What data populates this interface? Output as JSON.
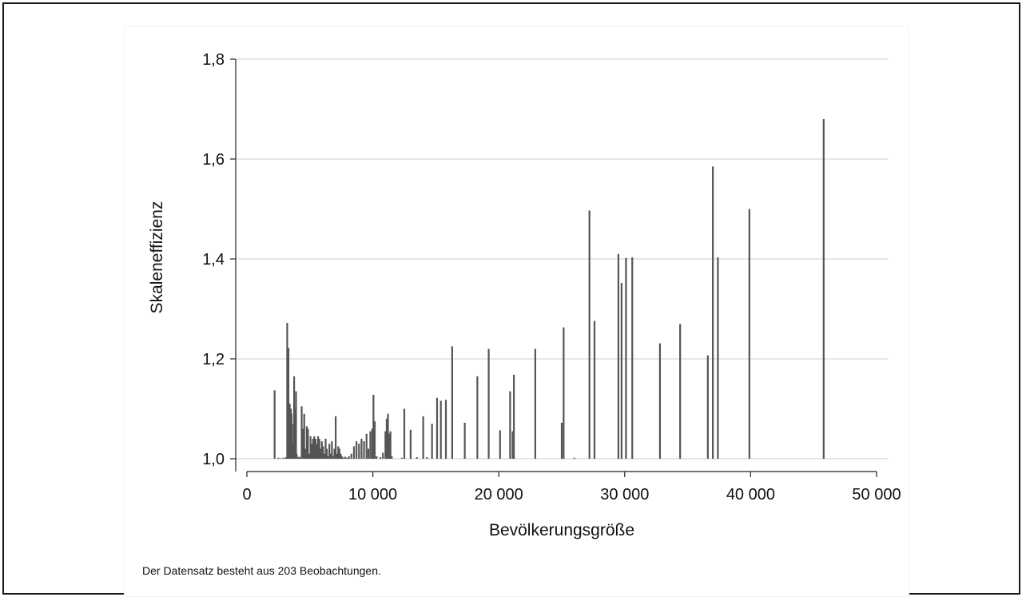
{
  "chart_data": {
    "type": "bar",
    "xlabel": "Bevölkerungsgröße",
    "ylabel": "Skaleneffizienz",
    "xlim": [
      0,
      50000
    ],
    "ylim": [
      1.0,
      1.8
    ],
    "x_ticks": [
      0,
      10000,
      20000,
      30000,
      40000,
      50000
    ],
    "x_tick_labels": [
      "0",
      "10 000",
      "20 000",
      "30 000",
      "40 000",
      "50 000"
    ],
    "y_ticks": [
      1.0,
      1.2,
      1.4,
      1.6,
      1.8
    ],
    "y_tick_labels": [
      "1,0",
      "1,2",
      "1,4",
      "1,6",
      "1,8"
    ],
    "grid": "horizontal",
    "bar_color": "#555555",
    "points": [
      {
        "x": 2200,
        "y": 1.137
      },
      {
        "x": 2500,
        "y": 1.002
      },
      {
        "x": 2700,
        "y": 1.001
      },
      {
        "x": 2900,
        "y": 1.002
      },
      {
        "x": 3100,
        "y": 1.003
      },
      {
        "x": 3200,
        "y": 1.272
      },
      {
        "x": 3300,
        "y": 1.222
      },
      {
        "x": 3350,
        "y": 1.1
      },
      {
        "x": 3400,
        "y": 1.11
      },
      {
        "x": 3450,
        "y": 1.05
      },
      {
        "x": 3500,
        "y": 1.1
      },
      {
        "x": 3550,
        "y": 1.09
      },
      {
        "x": 3600,
        "y": 1.03
      },
      {
        "x": 3650,
        "y": 1.002
      },
      {
        "x": 3700,
        "y": 1.07
      },
      {
        "x": 3750,
        "y": 1.165
      },
      {
        "x": 3800,
        "y": 1.01
      },
      {
        "x": 3850,
        "y": 1.1
      },
      {
        "x": 3900,
        "y": 1.135
      },
      {
        "x": 3950,
        "y": 1.01
      },
      {
        "x": 4050,
        "y": 1.003
      },
      {
        "x": 4150,
        "y": 1.004
      },
      {
        "x": 4250,
        "y": 1.002
      },
      {
        "x": 4350,
        "y": 1.105
      },
      {
        "x": 4450,
        "y": 1.06
      },
      {
        "x": 4550,
        "y": 1.09
      },
      {
        "x": 4650,
        "y": 1.02
      },
      {
        "x": 4750,
        "y": 1.065
      },
      {
        "x": 4850,
        "y": 1.06
      },
      {
        "x": 4950,
        "y": 1.01
      },
      {
        "x": 5050,
        "y": 1.045
      },
      {
        "x": 5150,
        "y": 1.03
      },
      {
        "x": 5250,
        "y": 1.04
      },
      {
        "x": 5350,
        "y": 1.045
      },
      {
        "x": 5450,
        "y": 1.04
      },
      {
        "x": 5550,
        "y": 1.03
      },
      {
        "x": 5650,
        "y": 1.045
      },
      {
        "x": 5750,
        "y": 1.04
      },
      {
        "x": 5850,
        "y": 1.02
      },
      {
        "x": 5950,
        "y": 1.035
      },
      {
        "x": 6050,
        "y": 1.025
      },
      {
        "x": 6150,
        "y": 1.01
      },
      {
        "x": 6250,
        "y": 1.04
      },
      {
        "x": 6350,
        "y": 1.02
      },
      {
        "x": 6450,
        "y": 1.005
      },
      {
        "x": 6550,
        "y": 1.03
      },
      {
        "x": 6650,
        "y": 1.01
      },
      {
        "x": 6750,
        "y": 1.035
      },
      {
        "x": 6850,
        "y": 1.005
      },
      {
        "x": 6950,
        "y": 1.02
      },
      {
        "x": 7050,
        "y": 1.085
      },
      {
        "x": 7150,
        "y": 1.01
      },
      {
        "x": 7250,
        "y": 1.025
      },
      {
        "x": 7350,
        "y": 1.02
      },
      {
        "x": 7450,
        "y": 1.01
      },
      {
        "x": 7550,
        "y": 1.005
      },
      {
        "x": 7650,
        "y": 1.002
      },
      {
        "x": 7800,
        "y": 1.004
      },
      {
        "x": 7950,
        "y": 1.002
      },
      {
        "x": 8100,
        "y": 1.005
      },
      {
        "x": 8300,
        "y": 1.01
      },
      {
        "x": 8500,
        "y": 1.025
      },
      {
        "x": 8700,
        "y": 1.035
      },
      {
        "x": 8900,
        "y": 1.03
      },
      {
        "x": 9100,
        "y": 1.04
      },
      {
        "x": 9300,
        "y": 1.035
      },
      {
        "x": 9500,
        "y": 1.05
      },
      {
        "x": 9650,
        "y": 1.02
      },
      {
        "x": 9800,
        "y": 1.055
      },
      {
        "x": 9950,
        "y": 1.06
      },
      {
        "x": 10050,
        "y": 1.128
      },
      {
        "x": 10150,
        "y": 1.075
      },
      {
        "x": 10300,
        "y": 1.005
      },
      {
        "x": 10600,
        "y": 1.003
      },
      {
        "x": 10800,
        "y": 1.012
      },
      {
        "x": 11000,
        "y": 1.055
      },
      {
        "x": 11100,
        "y": 1.08
      },
      {
        "x": 11200,
        "y": 1.09
      },
      {
        "x": 11300,
        "y": 1.05
      },
      {
        "x": 11400,
        "y": 1.055
      },
      {
        "x": 11500,
        "y": 1.005
      },
      {
        "x": 12500,
        "y": 1.1
      },
      {
        "x": 12300,
        "y": 1.002
      },
      {
        "x": 13000,
        "y": 1.058
      },
      {
        "x": 13500,
        "y": 1.003
      },
      {
        "x": 14000,
        "y": 1.085
      },
      {
        "x": 14300,
        "y": 1.003
      },
      {
        "x": 14700,
        "y": 1.07
      },
      {
        "x": 15100,
        "y": 1.122
      },
      {
        "x": 15400,
        "y": 1.116
      },
      {
        "x": 15800,
        "y": 1.118
      },
      {
        "x": 16300,
        "y": 1.225
      },
      {
        "x": 17300,
        "y": 1.072
      },
      {
        "x": 18300,
        "y": 1.165
      },
      {
        "x": 19200,
        "y": 1.22
      },
      {
        "x": 20100,
        "y": 1.057
      },
      {
        "x": 20900,
        "y": 1.135
      },
      {
        "x": 21100,
        "y": 1.055
      },
      {
        "x": 21200,
        "y": 1.168
      },
      {
        "x": 22900,
        "y": 1.22
      },
      {
        "x": 25000,
        "y": 1.072
      },
      {
        "x": 25150,
        "y": 1.263
      },
      {
        "x": 26000,
        "y": 1.002
      },
      {
        "x": 27200,
        "y": 1.497
      },
      {
        "x": 27600,
        "y": 1.276
      },
      {
        "x": 29500,
        "y": 1.41
      },
      {
        "x": 29750,
        "y": 1.352
      },
      {
        "x": 30100,
        "y": 1.402
      },
      {
        "x": 30600,
        "y": 1.403
      },
      {
        "x": 32800,
        "y": 1.231
      },
      {
        "x": 34400,
        "y": 1.27
      },
      {
        "x": 36600,
        "y": 1.207
      },
      {
        "x": 37000,
        "y": 1.585
      },
      {
        "x": 37400,
        "y": 1.403
      },
      {
        "x": 39900,
        "y": 1.5
      },
      {
        "x": 45800,
        "y": 1.68
      }
    ]
  },
  "note": "Der Datensatz besteht aus 203 Beobachtungen."
}
